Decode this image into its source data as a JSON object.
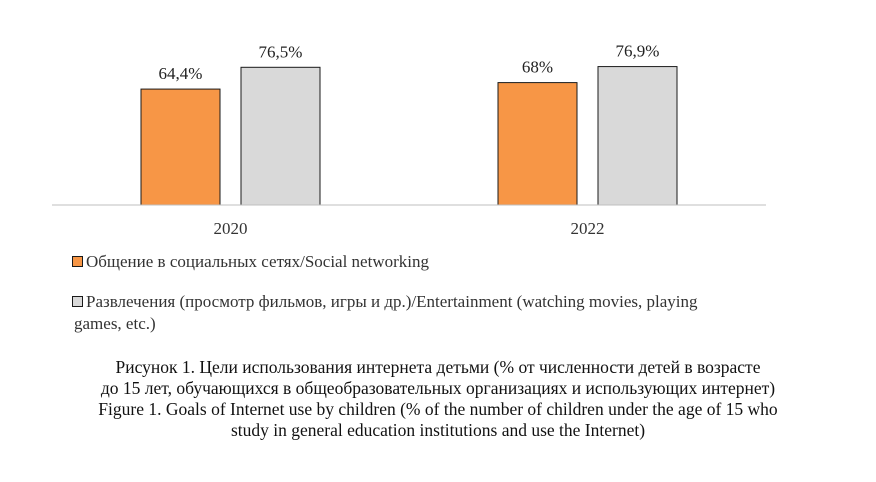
{
  "chart_data": {
    "type": "bar",
    "categories": [
      "2020",
      "2022"
    ],
    "series": [
      {
        "name": "Общение в социальных сетях/Social networking",
        "values": [
          64.4,
          68
        ],
        "labels": [
          "64,4%",
          "68%"
        ],
        "color": "#F79646",
        "border": "#1a1a1a"
      },
      {
        "name": "Развлечения (просмотр фильмов, игры и др.)/Entertainment (watching movies, playing games, etc.)",
        "values": [
          76.5,
          76.9
        ],
        "labels": [
          "76,5%",
          "76,9%"
        ],
        "color": "#D9D9D9",
        "border": "#1a1a1a"
      }
    ],
    "ylim": [
      0,
      100
    ],
    "grid": false,
    "legend_position": "bottom-left"
  },
  "legend": {
    "item1": "Общение в социальных сетях/Social networking",
    "item2_line1": "Развлечения (просмотр фильмов, игры и др.)/Entertainment (watching movies, playing",
    "item2_line2": "games, etc.)"
  },
  "caption": {
    "line1": "Рисунок 1. Цели использования интернета детьми (% от численности детей в возрасте",
    "line2": "до 15 лет, обучающихся в общеобразовательных организациях и использующих интернет)",
    "line3": "Figure 1. Goals of Internet use by children (% of the number of children under the age of 15 who",
    "line4": "study in general education institutions and use the Internet)"
  }
}
